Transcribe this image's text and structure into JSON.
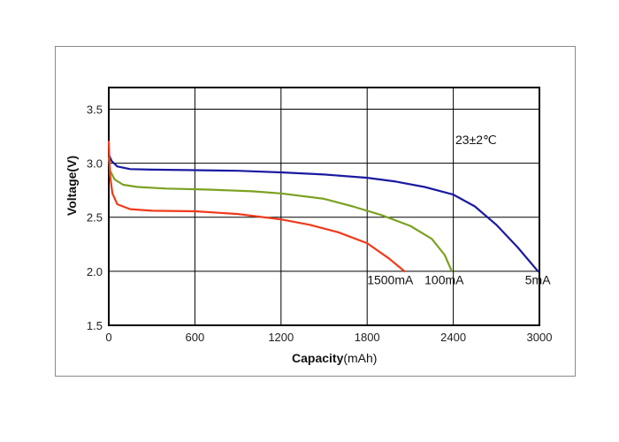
{
  "chart_data": {
    "type": "line",
    "xlabel_main": "Capacity",
    "xlabel_unit": "(mAh)",
    "ylabel": "Voltage(V)",
    "xlim": [
      0,
      3000
    ],
    "ylim": [
      1.5,
      3.7
    ],
    "xticks": [
      0,
      600,
      1200,
      1800,
      2400,
      3000
    ],
    "yticks": [
      1.5,
      2.0,
      2.5,
      3.0,
      3.5
    ],
    "ytick_labels": [
      "1.5",
      "2.0",
      "2.5",
      "3.0",
      "3.5"
    ],
    "grid": true,
    "annotation": "23±2℃",
    "series": [
      {
        "name": "5mA",
        "color": "#1a1aa0",
        "points": [
          [
            0,
            3.08
          ],
          [
            20,
            3.02
          ],
          [
            60,
            2.97
          ],
          [
            150,
            2.945
          ],
          [
            300,
            2.94
          ],
          [
            600,
            2.935
          ],
          [
            900,
            2.93
          ],
          [
            1200,
            2.915
          ],
          [
            1500,
            2.895
          ],
          [
            1800,
            2.865
          ],
          [
            2000,
            2.83
          ],
          [
            2200,
            2.78
          ],
          [
            2400,
            2.71
          ],
          [
            2550,
            2.6
          ],
          [
            2700,
            2.43
          ],
          [
            2850,
            2.22
          ],
          [
            2990,
            2.0
          ]
        ]
      },
      {
        "name": "100mA",
        "color": "#7ca122",
        "points": [
          [
            0,
            3.05
          ],
          [
            10,
            2.93
          ],
          [
            40,
            2.85
          ],
          [
            100,
            2.8
          ],
          [
            200,
            2.78
          ],
          [
            400,
            2.765
          ],
          [
            700,
            2.755
          ],
          [
            1000,
            2.74
          ],
          [
            1200,
            2.72
          ],
          [
            1500,
            2.67
          ],
          [
            1700,
            2.6
          ],
          [
            1900,
            2.52
          ],
          [
            2100,
            2.42
          ],
          [
            2250,
            2.3
          ],
          [
            2340,
            2.15
          ],
          [
            2390,
            2.0
          ]
        ]
      },
      {
        "name": "1500mA",
        "color": "#f03a1a",
        "points": [
          [
            0,
            3.2
          ],
          [
            8,
            2.9
          ],
          [
            25,
            2.72
          ],
          [
            60,
            2.62
          ],
          [
            150,
            2.575
          ],
          [
            300,
            2.56
          ],
          [
            600,
            2.555
          ],
          [
            900,
            2.53
          ],
          [
            1200,
            2.48
          ],
          [
            1400,
            2.43
          ],
          [
            1600,
            2.36
          ],
          [
            1800,
            2.26
          ],
          [
            1950,
            2.12
          ],
          [
            2060,
            2.0
          ]
        ]
      }
    ],
    "end_labels": [
      {
        "text": "1500mA",
        "x": 1800,
        "y": 1.92
      },
      {
        "text": "100mA",
        "x": 2200,
        "y": 1.92
      },
      {
        "text": "5mA",
        "x": 2900,
        "y": 1.92
      }
    ]
  }
}
